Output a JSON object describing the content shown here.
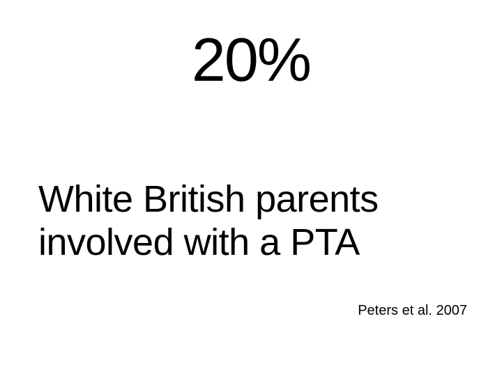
{
  "slide": {
    "stat_value": "20%",
    "stat_description_line1": "White British parents",
    "stat_description_line2": "involved with a PTA",
    "citation": "Peters et al. 2007"
  },
  "styling": {
    "background_color": "#ffffff",
    "text_color": "#000000",
    "stat_value_fontsize": 88,
    "description_fontsize": 54,
    "citation_fontsize": 20,
    "font_family": "Arial"
  }
}
